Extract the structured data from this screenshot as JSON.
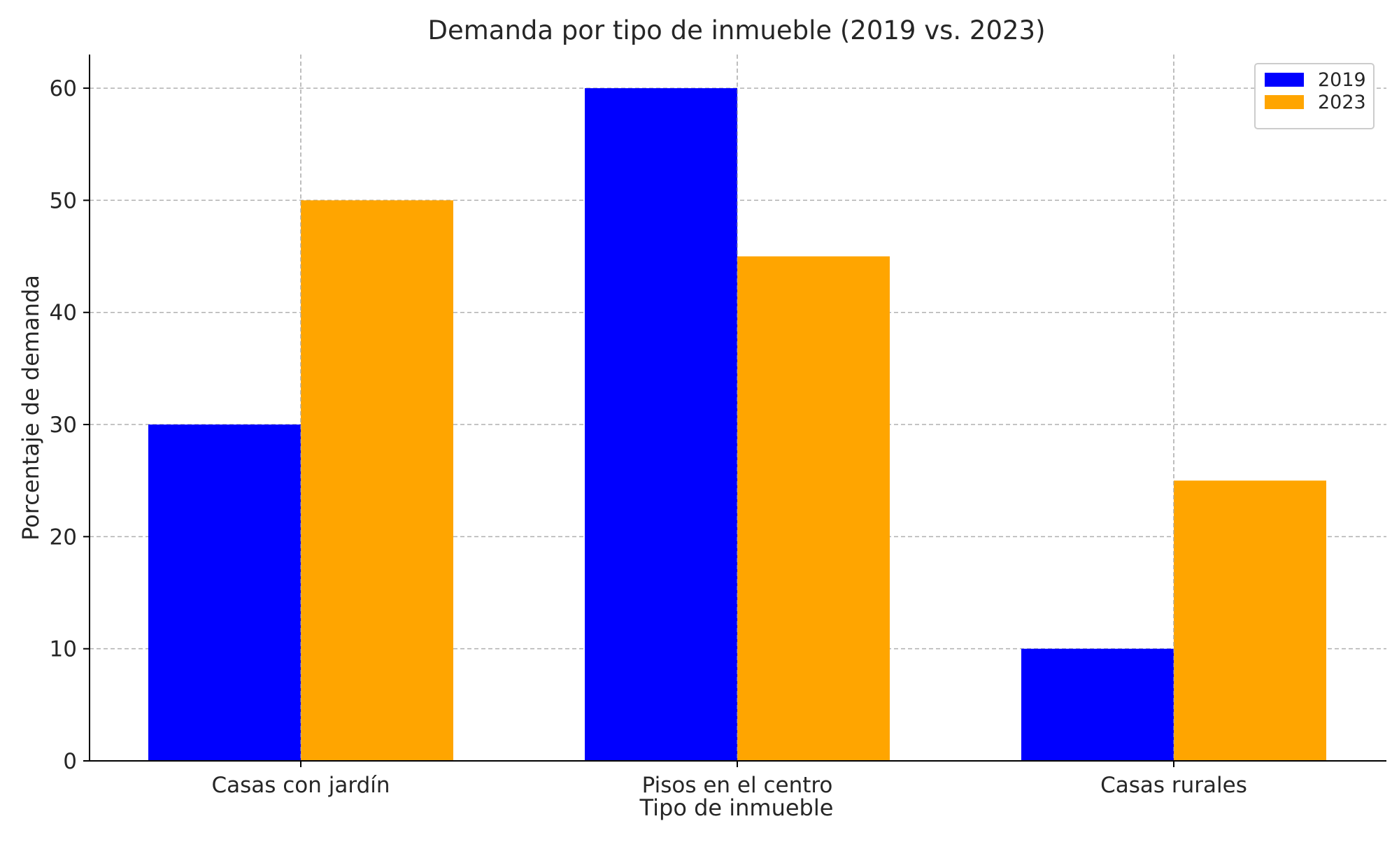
{
  "chart_data": {
    "type": "bar",
    "title": "Demanda por tipo de inmueble (2019 vs. 2023)",
    "xlabel": "Tipo de inmueble",
    "ylabel": "Porcentaje de demanda",
    "categories": [
      "Casas con jardín",
      "Pisos en el centro",
      "Casas rurales"
    ],
    "series": [
      {
        "name": "2019",
        "values": [
          30,
          60,
          10
        ],
        "color": "#0000ff"
      },
      {
        "name": "2023",
        "values": [
          50,
          45,
          25
        ],
        "color": "#ffa500"
      }
    ],
    "ylim": [
      0,
      63
    ],
    "yticks": [
      0,
      10,
      20,
      30,
      40,
      50,
      60
    ],
    "grid": true,
    "legend_position": "top-right"
  }
}
